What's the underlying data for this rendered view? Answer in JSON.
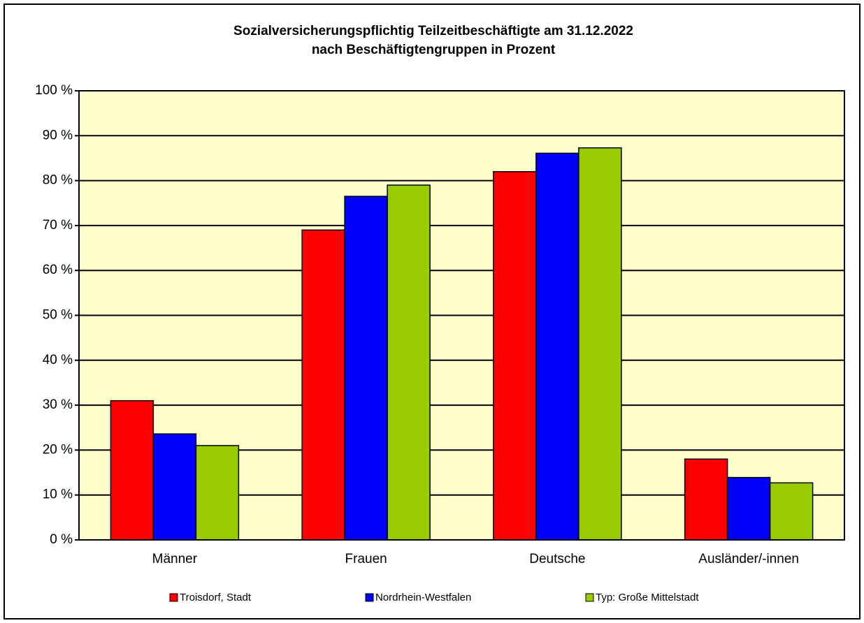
{
  "chart_data": {
    "type": "bar",
    "title": [
      "Sozialversicherungspflichtig Teilzeitbeschäftigte am 31.12.2022",
      "nach Beschäftigtengruppen in Prozent"
    ],
    "categories": [
      "Männer",
      "Frauen",
      "Deutsche",
      "Ausländer/-innen"
    ],
    "series": [
      {
        "name": "Troisdorf, Stadt",
        "color": "#ff0000",
        "values": [
          31,
          69,
          82,
          18
        ]
      },
      {
        "name": "Nordrhein-Westfalen",
        "color": "#0000ff",
        "values": [
          23.6,
          76.5,
          86.1,
          13.9
        ]
      },
      {
        "name": "Typ: Große Mittelstadt",
        "color": "#99cc00",
        "values": [
          21,
          79,
          87.3,
          12.7
        ]
      }
    ],
    "ylim": [
      0,
      100
    ],
    "yticks": [
      {
        "value": 0,
        "label": "0 %"
      },
      {
        "value": 10,
        "label": "10 %"
      },
      {
        "value": 20,
        "label": "20 %"
      },
      {
        "value": 30,
        "label": "30 %"
      },
      {
        "value": 40,
        "label": "40 %"
      },
      {
        "value": 50,
        "label": "50 %"
      },
      {
        "value": 60,
        "label": "60 %"
      },
      {
        "value": 70,
        "label": "70 %"
      },
      {
        "value": 80,
        "label": "80 %"
      },
      {
        "value": 90,
        "label": "90 %"
      },
      {
        "value": 100,
        "label": "100 %"
      }
    ],
    "grid": true,
    "legend": "bottom",
    "background": "#ffffcc"
  }
}
